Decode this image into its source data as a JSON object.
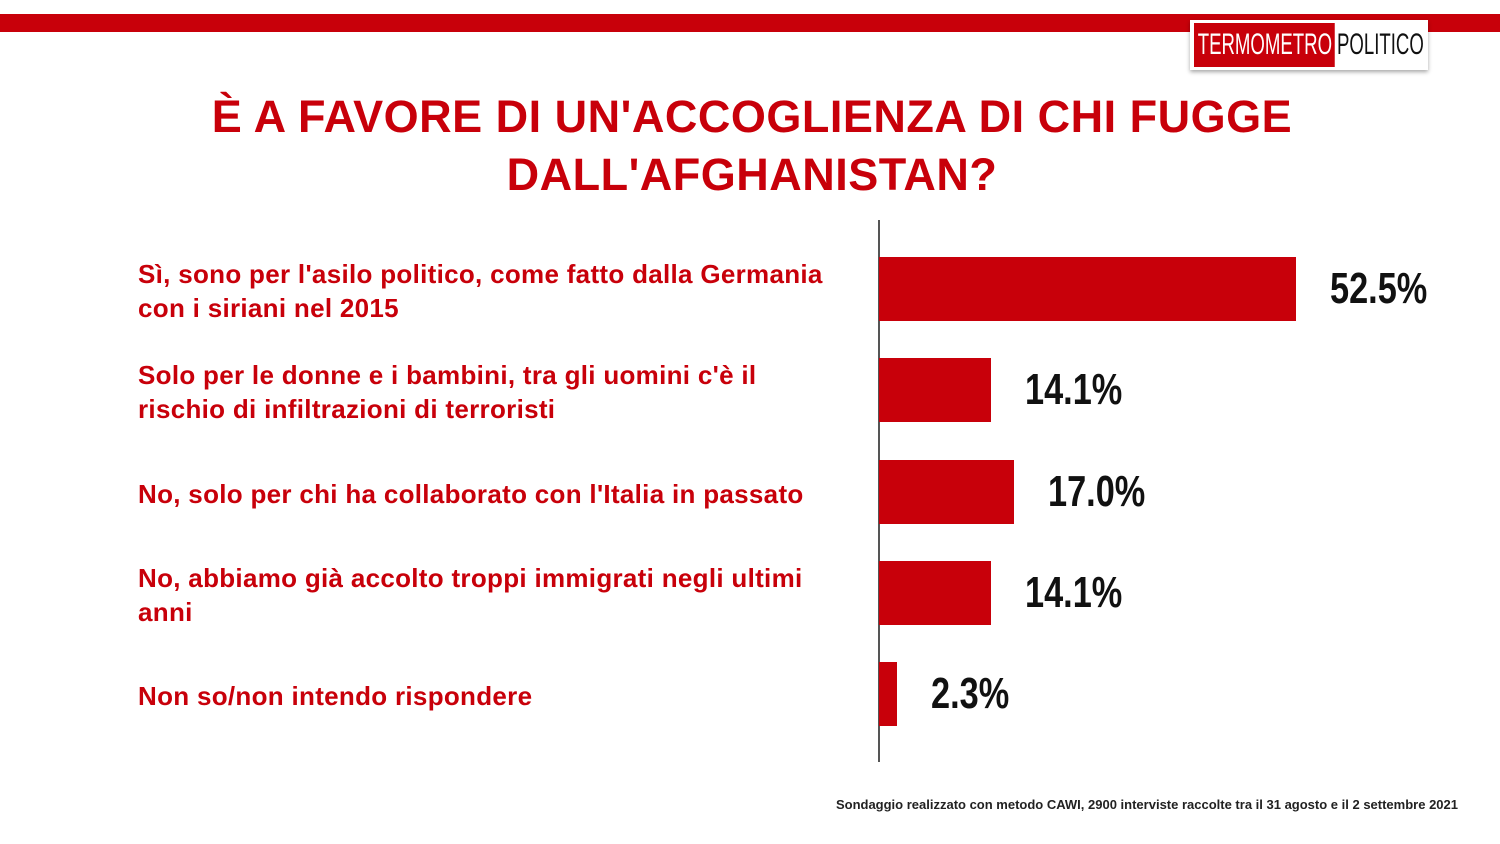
{
  "chart_data": {
    "type": "bar",
    "orientation": "horizontal",
    "brand": {
      "part1": "TERMOMETRO",
      "part2": "POLITICO"
    },
    "title": "È A FAVORE DI UN'ACCOGLIENZA DI CHI FUGGE DALL'AFGHANISTAN?",
    "categories": [
      "Sì, sono per l'asilo politico, come fatto dalla Germania con i siriani nel 2015",
      "Solo per le donne e i bambini, tra gli uomini c'è il rischio di infiltrazioni di terroristi",
      "No, solo per chi ha collaborato con l'Italia in passato",
      "No, abbiamo già  accolto troppi immigrati negli ultimi anni",
      "Non so/non intendo rispondere"
    ],
    "values": [
      52.5,
      14.1,
      17.0,
      14.1,
      2.3
    ],
    "value_labels": [
      "52.5%",
      "14.1%",
      "17.0%",
      "14.1%",
      "2.3%"
    ],
    "color": "#c8000a",
    "source": "Sondaggio realizzato con metodo CAWI, 2900 interviste raccolte tra il 31 agosto  e il 2  settembre 2021"
  }
}
